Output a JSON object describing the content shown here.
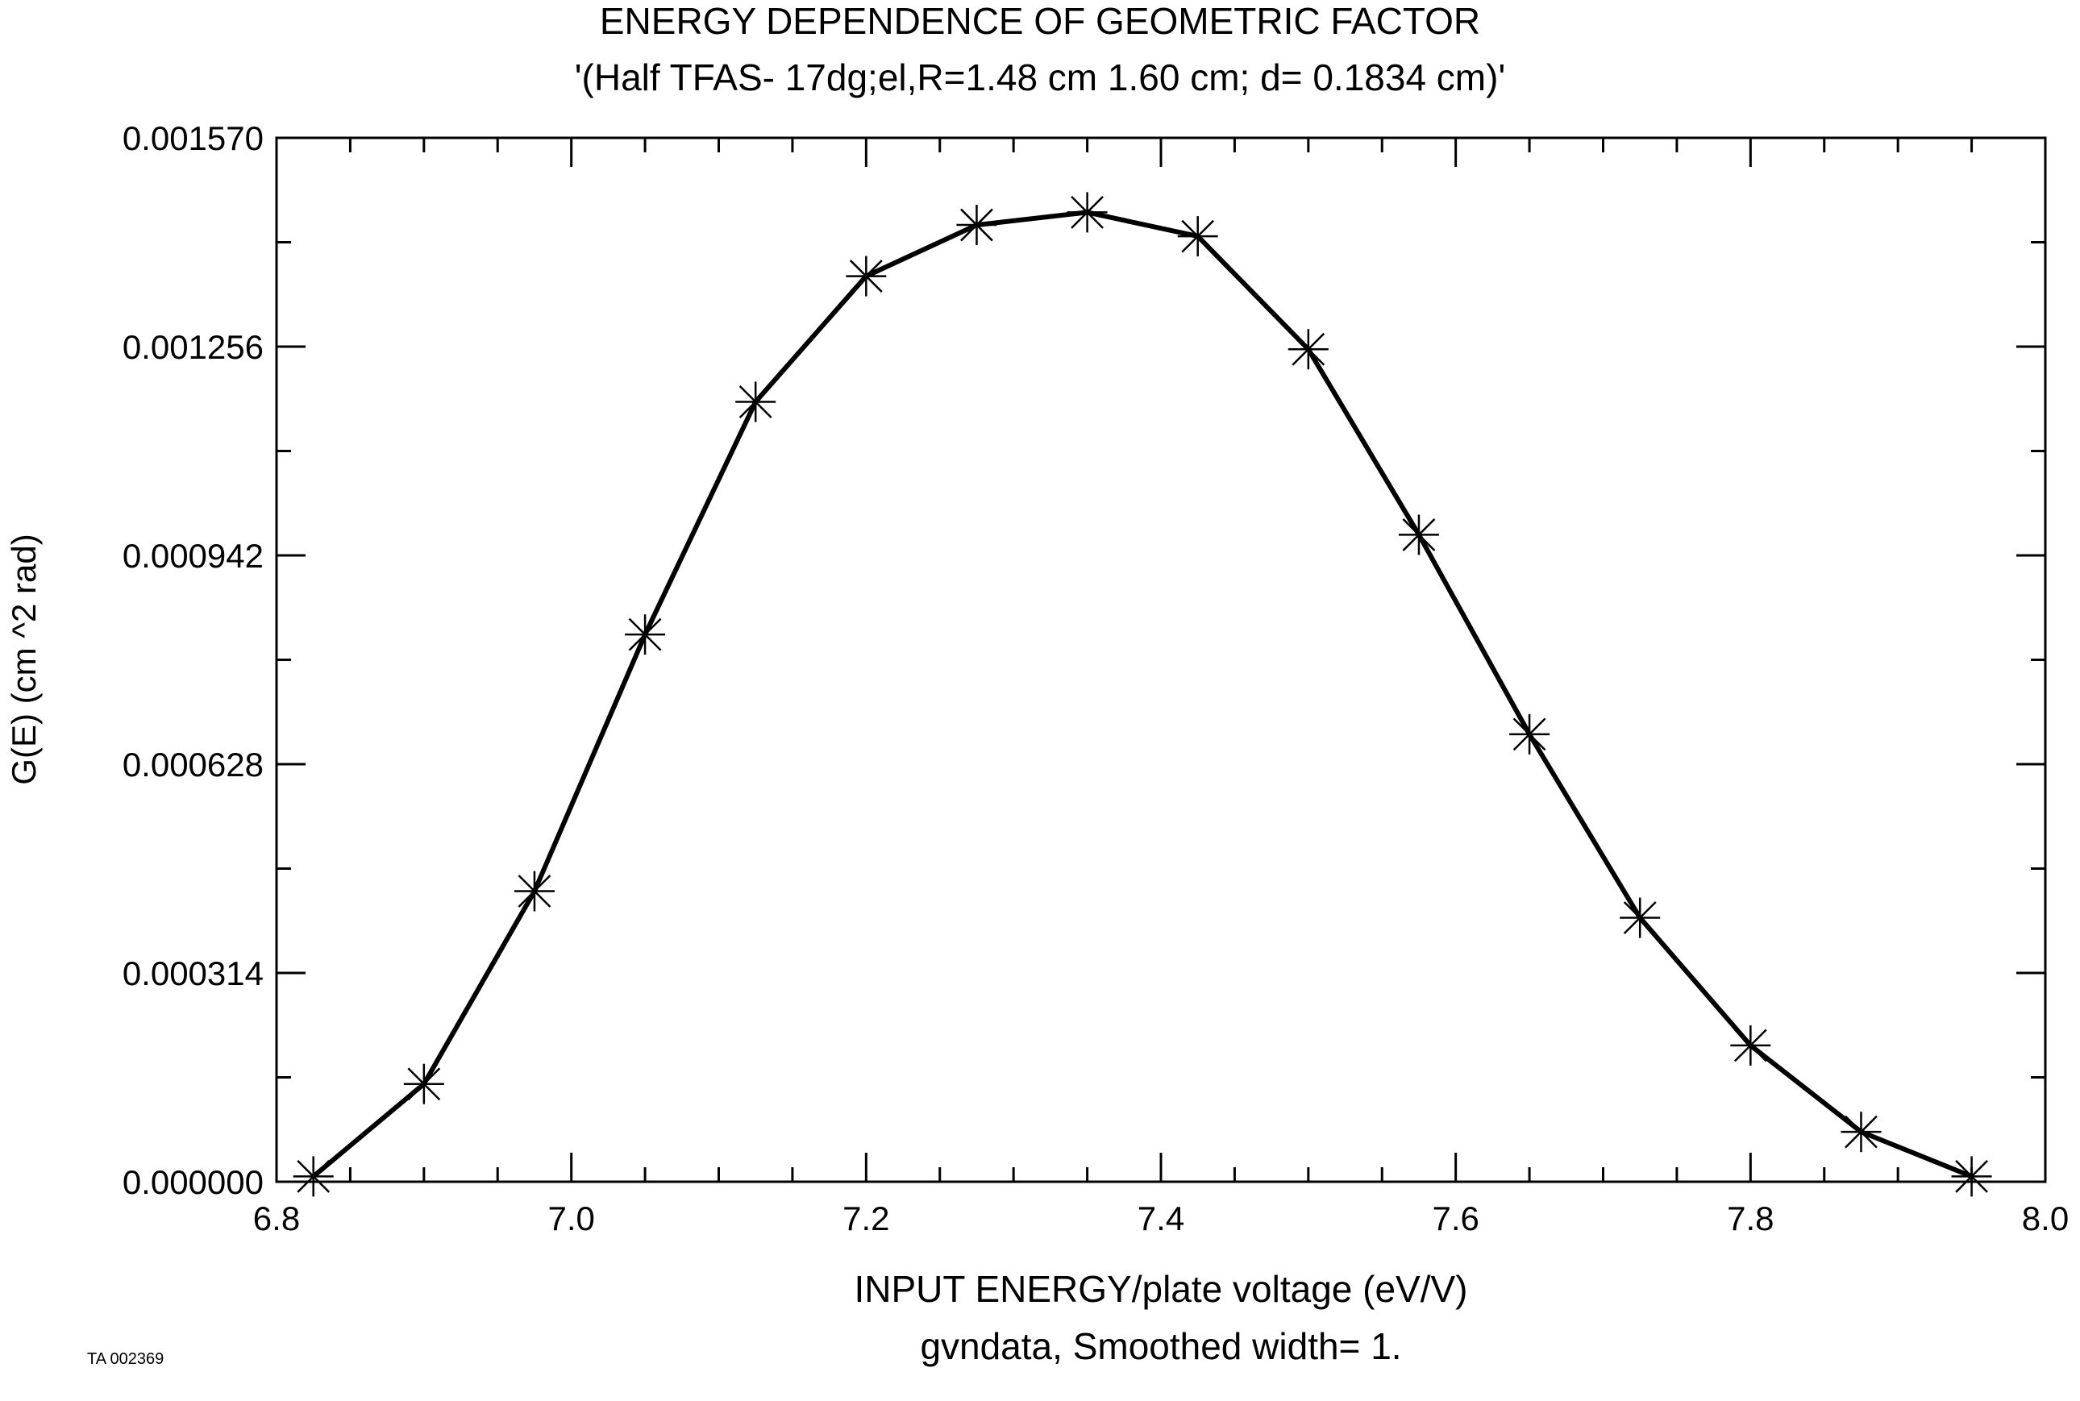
{
  "chart_data": {
    "type": "line",
    "title": "ENERGY DEPENDENCE OF GEOMETRIC FACTOR",
    "subtitle": "'(Half TFAS- 17dg;el,R=1.48 cm 1.60 cm; d= 0.1834 cm)'",
    "xlabel": "INPUT ENERGY/plate voltage (eV/V)",
    "xlabel2": "gvndata, Smoothed width= 1.",
    "ylabel": "G(E) (cm ^2 rad)",
    "footer": "TA 002369",
    "xlim": [
      6.8,
      8.0
    ],
    "ylim": [
      0.0,
      0.00157
    ],
    "x_ticks": [
      6.8,
      7.0,
      7.2,
      7.4,
      7.6,
      7.8,
      8.0
    ],
    "x_tick_labels": [
      "6.8",
      "7.0",
      "7.2",
      "7.4",
      "7.6",
      "7.8",
      "8.0"
    ],
    "x_minor_step": 0.05,
    "y_ticks": [
      0.0,
      0.000314,
      0.000628,
      0.000942,
      0.001256,
      0.00157
    ],
    "y_tick_labels": [
      "0.000000",
      "0.000314",
      "0.000628",
      "0.000942",
      "0.001256",
      "0.001570"
    ],
    "y_minor_step": 0.000157,
    "grid": false,
    "series": [
      {
        "name": "G(E)",
        "marker": "asterisk",
        "color": "#000000",
        "x": [
          6.825,
          6.9,
          6.975,
          7.05,
          7.125,
          7.2,
          7.275,
          7.35,
          7.425,
          7.5,
          7.575,
          7.65,
          7.725,
          7.8,
          7.875,
          7.95
        ],
        "y": [
          8e-06,
          0.000147,
          0.000437,
          0.000823,
          0.001173,
          0.001362,
          0.001439,
          0.001458,
          0.001422,
          0.001252,
          0.000973,
          0.000673,
          0.000397,
          0.000205,
          7.5e-05,
          8e-06
        ]
      }
    ]
  }
}
